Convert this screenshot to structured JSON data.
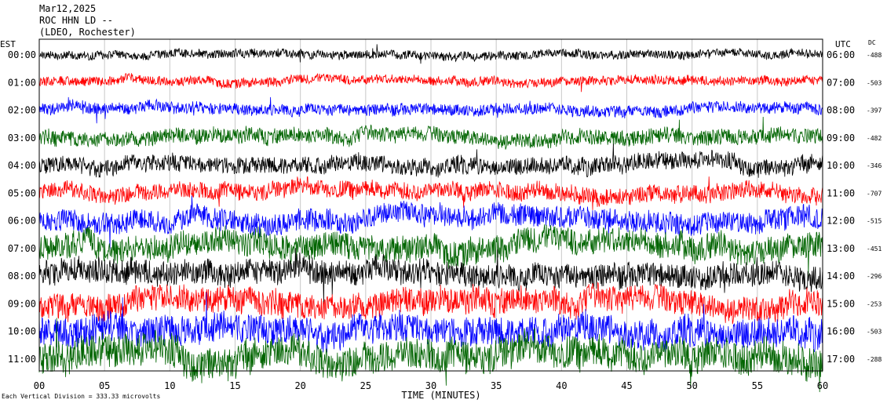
{
  "header": {
    "date": "Mar12,2025",
    "station": "ROC HHN LD --",
    "network": "(LDEO, Rochester)"
  },
  "chart_data": {
    "type": "line",
    "title": "",
    "xlabel": "TIME (MINUTES)",
    "left_axis_label": "EST",
    "right_axis_label": "UTC",
    "dc_label": "DC",
    "xlim": [
      0,
      60
    ],
    "x_ticks": [
      "00",
      "05",
      "10",
      "15",
      "20",
      "25",
      "30",
      "35",
      "40",
      "45",
      "50",
      "55",
      "60"
    ],
    "footer_note": "Each Vertical Division = 333.33 microvolts",
    "grid": true,
    "rows": [
      {
        "est": "00:00",
        "utc": "06:00",
        "dc": "-488",
        "color": "#000000",
        "amplitude": 0.28
      },
      {
        "est": "01:00",
        "utc": "07:00",
        "dc": "-503",
        "color": "#ff0000",
        "amplitude": 0.3
      },
      {
        "est": "02:00",
        "utc": "08:00",
        "dc": "-397",
        "color": "#0000ff",
        "amplitude": 0.38
      },
      {
        "est": "03:00",
        "utc": "09:00",
        "dc": "-482",
        "color": "#006400",
        "amplitude": 0.5
      },
      {
        "est": "04:00",
        "utc": "10:00",
        "dc": "-346",
        "color": "#000000",
        "amplitude": 0.55
      },
      {
        "est": "05:00",
        "utc": "11:00",
        "dc": "-707",
        "color": "#ff0000",
        "amplitude": 0.55
      },
      {
        "est": "06:00",
        "utc": "12:00",
        "dc": "-515",
        "color": "#0000ff",
        "amplitude": 0.7
      },
      {
        "est": "07:00",
        "utc": "13:00",
        "dc": "-451",
        "color": "#006400",
        "amplitude": 0.85
      },
      {
        "est": "08:00",
        "utc": "14:00",
        "dc": "-296",
        "color": "#000000",
        "amplitude": 0.8
      },
      {
        "est": "09:00",
        "utc": "15:00",
        "dc": "-253",
        "color": "#ff0000",
        "amplitude": 0.85
      },
      {
        "est": "10:00",
        "utc": "16:00",
        "dc": "-503",
        "color": "#0000ff",
        "amplitude": 0.95
      },
      {
        "est": "11:00",
        "utc": "17:00",
        "dc": "-288",
        "color": "#006400",
        "amplitude": 1.05
      }
    ]
  }
}
